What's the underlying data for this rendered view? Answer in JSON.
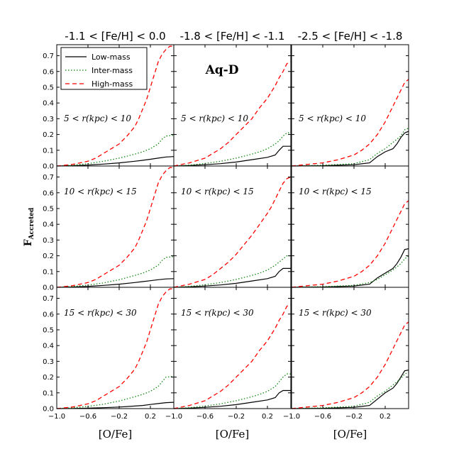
{
  "chart_data": {
    "type": "line",
    "halo_label": "Aq-D",
    "ylabel": "F",
    "ylabel_subscript": "Accreted",
    "xlabel": "[O/Fe]",
    "xlim": [
      -1.0,
      0.5
    ],
    "ylim": [
      0.0,
      0.77
    ],
    "xticks": [
      -1.0,
      -0.6,
      -0.2,
      0.2
    ],
    "xtick_labels": [
      "−1.0",
      "−0.6",
      "−0.2",
      "0.2"
    ],
    "yticks": [
      0.0,
      0.1,
      0.2,
      0.3,
      0.4,
      0.5,
      0.6,
      0.7
    ],
    "ytick_labels": [
      "0.0",
      "0.1",
      "0.2",
      "0.3",
      "0.4",
      "0.5",
      "0.6",
      "0.7"
    ],
    "columns": [
      "-1.1 < [Fe/H] < 0.0",
      "-1.8 < [Fe/H] < -1.1",
      "-2.5 < [Fe/H] < -1.8"
    ],
    "rows": [
      "5 < r(kpc) < 10",
      "10 < r(kpc) < 15",
      "15 < r(kpc) < 30"
    ],
    "legend": [
      {
        "name": "Low-mass",
        "color": "#000000",
        "dash": "solid"
      },
      {
        "name": "Inter-mass",
        "color": "#008000",
        "dash": "dotted"
      },
      {
        "name": "High-mass",
        "color": "#ff0000",
        "dash": "dashed"
      }
    ],
    "legend_position": "top-left",
    "panels": [
      {
        "row": 0,
        "col": 0,
        "series": [
          {
            "name": "Low-mass",
            "x": [
              -1.0,
              -0.8,
              -0.6,
              -0.4,
              -0.2,
              0.0,
              0.1,
              0.2,
              0.3,
              0.4,
              0.5
            ],
            "y": [
              0.0,
              0.002,
              0.006,
              0.012,
              0.02,
              0.03,
              0.036,
              0.043,
              0.05,
              0.057,
              0.06
            ]
          },
          {
            "name": "Inter-mass",
            "x": [
              -1.0,
              -0.8,
              -0.6,
              -0.4,
              -0.2,
              0.0,
              0.1,
              0.2,
              0.3,
              0.35,
              0.4,
              0.5
            ],
            "y": [
              0.0,
              0.005,
              0.015,
              0.03,
              0.05,
              0.075,
              0.09,
              0.11,
              0.14,
              0.17,
              0.19,
              0.195
            ]
          },
          {
            "name": "High-mass",
            "x": [
              -1.0,
              -0.8,
              -0.6,
              -0.5,
              -0.4,
              -0.3,
              -0.2,
              -0.1,
              0.0,
              0.05,
              0.1,
              0.15,
              0.2,
              0.25,
              0.3,
              0.35,
              0.4,
              0.45,
              0.5
            ],
            "y": [
              0.0,
              0.01,
              0.03,
              0.05,
              0.08,
              0.11,
              0.14,
              0.19,
              0.25,
              0.3,
              0.36,
              0.42,
              0.5,
              0.58,
              0.66,
              0.71,
              0.74,
              0.76,
              0.76
            ]
          }
        ]
      },
      {
        "row": 0,
        "col": 1,
        "series": [
          {
            "name": "Low-mass",
            "x": [
              -1.0,
              -0.8,
              -0.6,
              -0.4,
              -0.2,
              0.0,
              0.2,
              0.3,
              0.35,
              0.4,
              0.5
            ],
            "y": [
              0.0,
              0.003,
              0.008,
              0.015,
              0.025,
              0.04,
              0.055,
              0.07,
              0.1,
              0.125,
              0.125
            ]
          },
          {
            "name": "Inter-mass",
            "x": [
              -1.0,
              -0.8,
              -0.6,
              -0.4,
              -0.2,
              0.0,
              0.1,
              0.2,
              0.3,
              0.35,
              0.4,
              0.45,
              0.5
            ],
            "y": [
              0.0,
              0.006,
              0.016,
              0.03,
              0.05,
              0.075,
              0.09,
              0.11,
              0.14,
              0.16,
              0.19,
              0.21,
              0.21
            ]
          },
          {
            "name": "High-mass",
            "x": [
              -1.0,
              -0.8,
              -0.6,
              -0.5,
              -0.4,
              -0.3,
              -0.2,
              -0.1,
              0.0,
              0.1,
              0.2,
              0.25,
              0.3,
              0.35,
              0.4,
              0.45,
              0.5
            ],
            "y": [
              0.0,
              0.02,
              0.05,
              0.08,
              0.11,
              0.15,
              0.2,
              0.25,
              0.3,
              0.37,
              0.43,
              0.47,
              0.51,
              0.56,
              0.6,
              0.65,
              0.66
            ]
          }
        ]
      },
      {
        "row": 0,
        "col": 2,
        "series": [
          {
            "name": "Low-mass",
            "x": [
              -1.0,
              -0.6,
              -0.2,
              0.0,
              0.1,
              0.2,
              0.3,
              0.35,
              0.4,
              0.45,
              0.5
            ],
            "y": [
              0.0,
              0.002,
              0.008,
              0.02,
              0.06,
              0.09,
              0.11,
              0.14,
              0.18,
              0.21,
              0.22
            ]
          },
          {
            "name": "Inter-mass",
            "x": [
              -1.0,
              -0.6,
              -0.2,
              0.0,
              0.1,
              0.2,
              0.3,
              0.4,
              0.45,
              0.5
            ],
            "y": [
              0.0,
              0.005,
              0.015,
              0.04,
              0.08,
              0.11,
              0.15,
              0.19,
              0.23,
              0.24
            ]
          },
          {
            "name": "High-mass",
            "x": [
              -1.0,
              -0.8,
              -0.6,
              -0.4,
              -0.2,
              -0.1,
              0.0,
              0.1,
              0.2,
              0.3,
              0.4,
              0.45,
              0.5
            ],
            "y": [
              0.0,
              0.01,
              0.02,
              0.04,
              0.07,
              0.1,
              0.14,
              0.2,
              0.28,
              0.38,
              0.48,
              0.53,
              0.55
            ]
          }
        ]
      },
      {
        "row": 1,
        "col": 0,
        "series": [
          {
            "name": "Low-mass",
            "x": [
              -1.0,
              -0.8,
              -0.6,
              -0.4,
              -0.2,
              0.0,
              0.1,
              0.2,
              0.3,
              0.4,
              0.5
            ],
            "y": [
              0.0,
              0.002,
              0.006,
              0.012,
              0.02,
              0.03,
              0.036,
              0.042,
              0.048,
              0.053,
              0.055
            ]
          },
          {
            "name": "Inter-mass",
            "x": [
              -1.0,
              -0.8,
              -0.6,
              -0.4,
              -0.2,
              0.0,
              0.1,
              0.2,
              0.3,
              0.35,
              0.4,
              0.5
            ],
            "y": [
              0.0,
              0.005,
              0.014,
              0.028,
              0.048,
              0.075,
              0.09,
              0.11,
              0.14,
              0.17,
              0.19,
              0.195
            ]
          },
          {
            "name": "High-mass",
            "x": [
              -1.0,
              -0.8,
              -0.6,
              -0.5,
              -0.4,
              -0.3,
              -0.2,
              -0.1,
              0.0,
              0.05,
              0.1,
              0.15,
              0.2,
              0.25,
              0.3,
              0.35,
              0.4,
              0.45,
              0.5
            ],
            "y": [
              0.0,
              0.01,
              0.03,
              0.05,
              0.08,
              0.11,
              0.14,
              0.19,
              0.25,
              0.3,
              0.36,
              0.42,
              0.5,
              0.58,
              0.66,
              0.71,
              0.74,
              0.76,
              0.76
            ]
          }
        ]
      },
      {
        "row": 1,
        "col": 1,
        "series": [
          {
            "name": "Low-mass",
            "x": [
              -1.0,
              -0.8,
              -0.6,
              -0.4,
              -0.2,
              0.0,
              0.2,
              0.3,
              0.35,
              0.4,
              0.5
            ],
            "y": [
              0.0,
              0.003,
              0.008,
              0.015,
              0.025,
              0.04,
              0.055,
              0.07,
              0.1,
              0.12,
              0.12
            ]
          },
          {
            "name": "Inter-mass",
            "x": [
              -1.0,
              -0.8,
              -0.6,
              -0.4,
              -0.2,
              0.0,
              0.1,
              0.2,
              0.3,
              0.35,
              0.4,
              0.45,
              0.5
            ],
            "y": [
              0.0,
              0.006,
              0.016,
              0.03,
              0.05,
              0.075,
              0.09,
              0.11,
              0.14,
              0.16,
              0.18,
              0.2,
              0.2
            ]
          },
          {
            "name": "High-mass",
            "x": [
              -1.0,
              -0.8,
              -0.6,
              -0.5,
              -0.4,
              -0.3,
              -0.2,
              -0.1,
              0.0,
              0.1,
              0.2,
              0.25,
              0.3,
              0.35,
              0.4,
              0.45,
              0.5
            ],
            "y": [
              0.0,
              0.02,
              0.05,
              0.08,
              0.12,
              0.16,
              0.21,
              0.27,
              0.33,
              0.4,
              0.47,
              0.51,
              0.56,
              0.61,
              0.66,
              0.69,
              0.7
            ]
          }
        ]
      },
      {
        "row": 1,
        "col": 2,
        "series": [
          {
            "name": "Low-mass",
            "x": [
              -1.0,
              -0.6,
              -0.2,
              0.0,
              0.1,
              0.2,
              0.3,
              0.35,
              0.4,
              0.45,
              0.5
            ],
            "y": [
              0.0,
              0.002,
              0.008,
              0.02,
              0.06,
              0.09,
              0.12,
              0.15,
              0.19,
              0.24,
              0.245
            ]
          },
          {
            "name": "Inter-mass",
            "x": [
              -1.0,
              -0.6,
              -0.2,
              0.0,
              0.1,
              0.2,
              0.3,
              0.4,
              0.45,
              0.5
            ],
            "y": [
              0.0,
              0.004,
              0.012,
              0.03,
              0.05,
              0.08,
              0.11,
              0.15,
              0.18,
              0.2
            ]
          },
          {
            "name": "High-mass",
            "x": [
              -1.0,
              -0.8,
              -0.6,
              -0.4,
              -0.2,
              -0.1,
              0.0,
              0.1,
              0.2,
              0.3,
              0.4,
              0.45,
              0.5
            ],
            "y": [
              0.0,
              0.01,
              0.02,
              0.04,
              0.07,
              0.1,
              0.14,
              0.2,
              0.28,
              0.38,
              0.48,
              0.53,
              0.55
            ]
          }
        ]
      },
      {
        "row": 2,
        "col": 0,
        "series": [
          {
            "name": "Low-mass",
            "x": [
              -1.0,
              -0.8,
              -0.6,
              -0.4,
              -0.2,
              0.0,
              0.1,
              0.2,
              0.3,
              0.4,
              0.5
            ],
            "y": [
              0.0,
              0.001,
              0.003,
              0.006,
              0.01,
              0.016,
              0.02,
              0.026,
              0.032,
              0.038,
              0.04
            ]
          },
          {
            "name": "Inter-mass",
            "x": [
              -1.0,
              -0.8,
              -0.6,
              -0.4,
              -0.2,
              0.0,
              0.1,
              0.2,
              0.3,
              0.35,
              0.4,
              0.5
            ],
            "y": [
              0.0,
              0.005,
              0.014,
              0.028,
              0.048,
              0.075,
              0.09,
              0.11,
              0.14,
              0.17,
              0.2,
              0.205
            ]
          },
          {
            "name": "High-mass",
            "x": [
              -1.0,
              -0.8,
              -0.6,
              -0.5,
              -0.4,
              -0.3,
              -0.2,
              -0.1,
              0.0,
              0.05,
              0.1,
              0.15,
              0.2,
              0.25,
              0.3,
              0.35,
              0.4,
              0.45,
              0.5
            ],
            "y": [
              0.0,
              0.01,
              0.03,
              0.05,
              0.08,
              0.11,
              0.14,
              0.19,
              0.25,
              0.3,
              0.36,
              0.42,
              0.5,
              0.58,
              0.66,
              0.71,
              0.74,
              0.76,
              0.76
            ]
          }
        ]
      },
      {
        "row": 2,
        "col": 1,
        "series": [
          {
            "name": "Low-mass",
            "x": [
              -1.0,
              -0.8,
              -0.6,
              -0.4,
              -0.2,
              0.0,
              0.2,
              0.3,
              0.35,
              0.4,
              0.5
            ],
            "y": [
              0.0,
              0.003,
              0.008,
              0.015,
              0.025,
              0.04,
              0.055,
              0.07,
              0.1,
              0.115,
              0.115
            ]
          },
          {
            "name": "Inter-mass",
            "x": [
              -1.0,
              -0.8,
              -0.6,
              -0.4,
              -0.2,
              0.0,
              0.1,
              0.2,
              0.3,
              0.35,
              0.4,
              0.45,
              0.5
            ],
            "y": [
              0.0,
              0.006,
              0.016,
              0.03,
              0.05,
              0.075,
              0.09,
              0.11,
              0.14,
              0.17,
              0.2,
              0.22,
              0.22
            ]
          },
          {
            "name": "High-mass",
            "x": [
              -1.0,
              -0.8,
              -0.6,
              -0.5,
              -0.4,
              -0.3,
              -0.2,
              -0.1,
              0.0,
              0.1,
              0.2,
              0.25,
              0.3,
              0.35,
              0.4,
              0.45,
              0.5
            ],
            "y": [
              0.0,
              0.02,
              0.05,
              0.08,
              0.11,
              0.15,
              0.2,
              0.25,
              0.3,
              0.37,
              0.43,
              0.47,
              0.51,
              0.56,
              0.6,
              0.65,
              0.66
            ]
          }
        ]
      },
      {
        "row": 2,
        "col": 2,
        "series": [
          {
            "name": "Low-mass",
            "x": [
              -1.0,
              -0.6,
              -0.2,
              0.0,
              0.1,
              0.2,
              0.3,
              0.35,
              0.4,
              0.45,
              0.5
            ],
            "y": [
              0.0,
              0.002,
              0.008,
              0.02,
              0.06,
              0.1,
              0.13,
              0.16,
              0.2,
              0.24,
              0.245
            ]
          },
          {
            "name": "Inter-mass",
            "x": [
              -1.0,
              -0.6,
              -0.2,
              0.0,
              0.1,
              0.2,
              0.3,
              0.4,
              0.45,
              0.5
            ],
            "y": [
              0.0,
              0.005,
              0.015,
              0.04,
              0.08,
              0.11,
              0.15,
              0.19,
              0.22,
              0.23
            ]
          },
          {
            "name": "High-mass",
            "x": [
              -1.0,
              -0.8,
              -0.6,
              -0.4,
              -0.2,
              -0.1,
              0.0,
              0.1,
              0.2,
              0.3,
              0.4,
              0.45,
              0.5
            ],
            "y": [
              0.0,
              0.01,
              0.02,
              0.04,
              0.07,
              0.1,
              0.14,
              0.2,
              0.28,
              0.38,
              0.48,
              0.53,
              0.55
            ]
          }
        ]
      }
    ]
  }
}
